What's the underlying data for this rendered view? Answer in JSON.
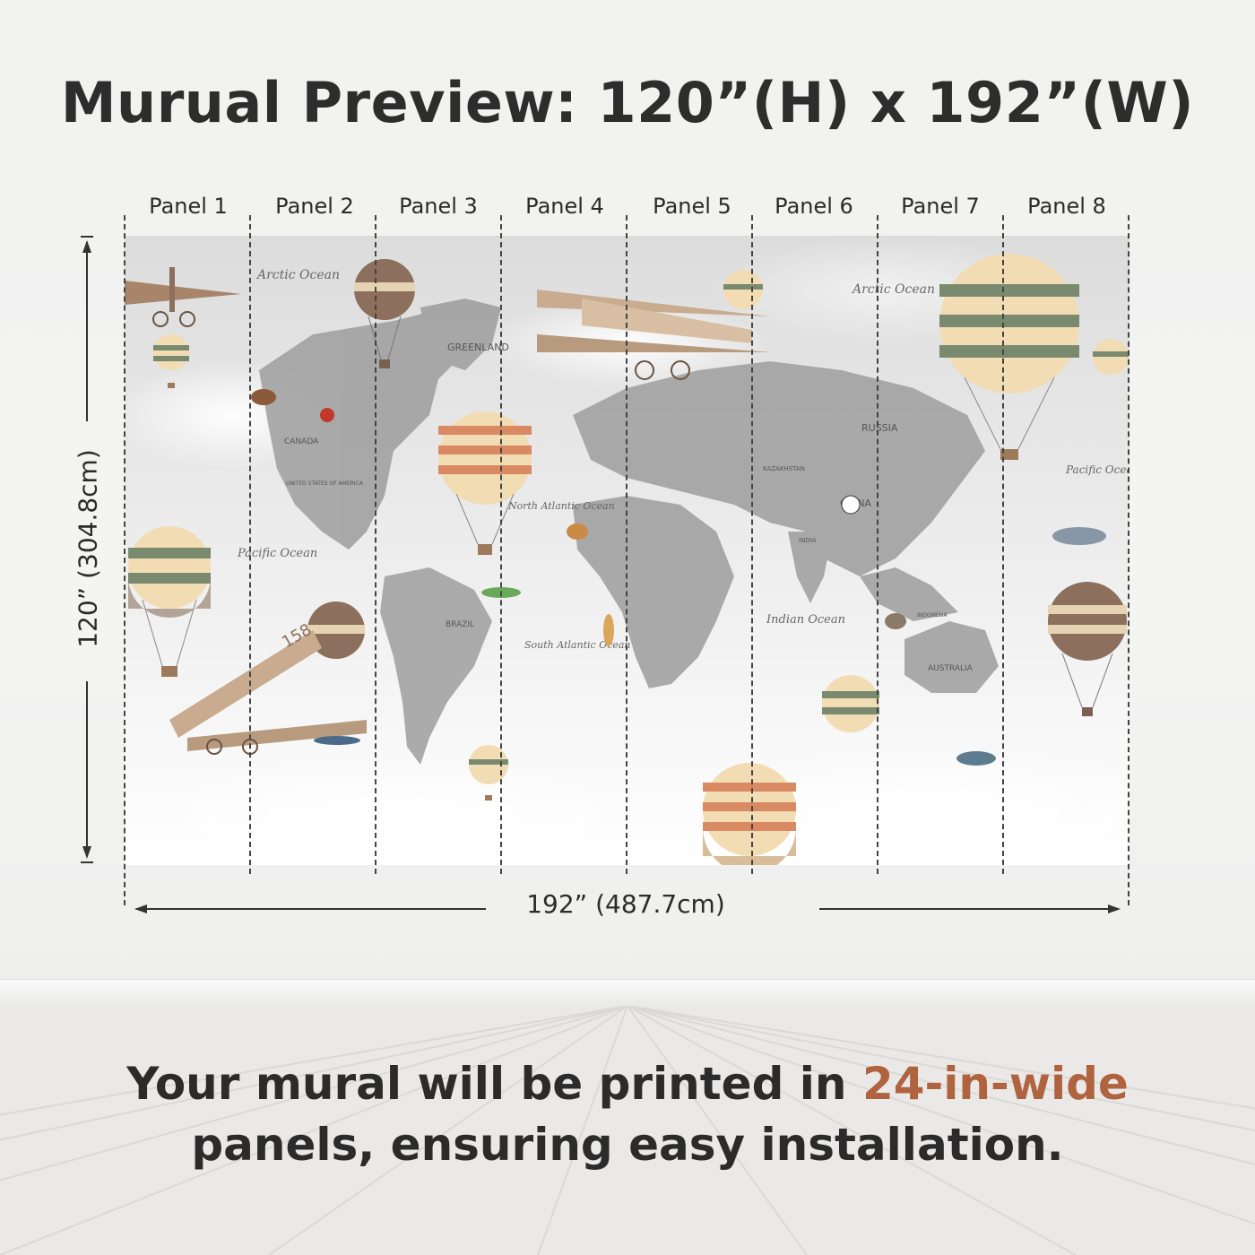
{
  "title": "Murual Preview: 120”(H) x 192”(W)",
  "panels": [
    "Panel 1",
    "Panel 2",
    "Panel 3",
    "Panel 4",
    "Panel 5",
    "Panel 6",
    "Panel 7",
    "Panel 8"
  ],
  "dimensions": {
    "height_label": "120” (304.8cm)",
    "width_label": "192” (487.7cm)"
  },
  "map": {
    "oceans": [
      "Arctic Ocean",
      "Arctic Ocean",
      "Pacific Ocean",
      "North Atlantic Ocean",
      "South Atlantic Ocean",
      "Indian Ocean",
      "Pacific Ocean"
    ],
    "regions": [
      "GREENLAND",
      "CANADA",
      "UNITED STATES OF AMERICA",
      "RUSSIA",
      "KAZAKHSTAN",
      "CHINA",
      "INDIA",
      "BRAZIL",
      "AUSTRALIA",
      "INDONESIA"
    ],
    "plane_number": "158"
  },
  "caption": {
    "line1_prefix": "Your mural will be printed in ",
    "line1_highlight": "24-in-wide",
    "line2": "panels, ensuring easy installation."
  },
  "colors": {
    "accent": "#b0633f",
    "text": "#2b2b2b",
    "map_land": "#9a9a9a",
    "balloon_green": "#7a8a6e",
    "balloon_orange": "#d98a62",
    "balloon_cream": "#f2dcb4",
    "balloon_brown": "#8c6f5c"
  }
}
